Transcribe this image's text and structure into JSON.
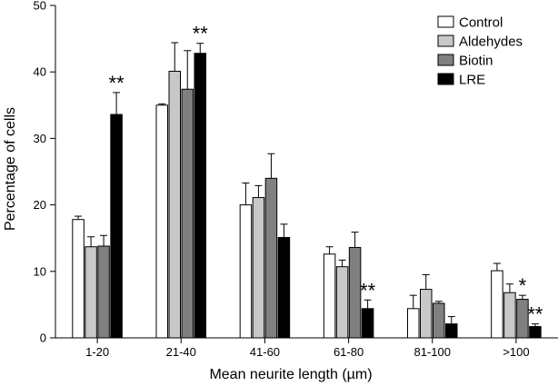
{
  "chart_data": {
    "type": "bar",
    "title": "",
    "xlabel": "Mean neurite length (µm)",
    "ylabel": "Percentage of cells",
    "ylim": [
      0,
      50
    ],
    "yticks": [
      0,
      10,
      20,
      30,
      40,
      50
    ],
    "grid": false,
    "legend_position": "top-right",
    "categories": [
      "1-20",
      "21-40",
      "41-60",
      "61-80",
      "81-100",
      ">100"
    ],
    "series": [
      {
        "name": "Control",
        "color": "#ffffff",
        "values": [
          17.8,
          35.0,
          20.0,
          12.6,
          4.4,
          10.1
        ],
        "errors": [
          0.5,
          0.2,
          3.3,
          1.1,
          2.0,
          1.1
        ],
        "significance": [
          "",
          "",
          "",
          "",
          "",
          ""
        ]
      },
      {
        "name": "Aldehydes",
        "color": "#c8c8c8",
        "values": [
          13.7,
          40.1,
          21.1,
          10.7,
          7.3,
          6.8
        ],
        "errors": [
          1.5,
          4.3,
          1.8,
          1.0,
          2.2,
          1.3
        ],
        "significance": [
          "",
          "",
          "",
          "",
          "",
          ""
        ]
      },
      {
        "name": "Biotin",
        "color": "#808080",
        "values": [
          13.8,
          37.4,
          24.0,
          13.6,
          5.2,
          5.8
        ],
        "errors": [
          1.6,
          5.8,
          3.7,
          2.3,
          0.3,
          0.6
        ],
        "significance": [
          "",
          "",
          "",
          "",
          "",
          "*"
        ]
      },
      {
        "name": "LRE",
        "color": "#000000",
        "values": [
          33.6,
          42.8,
          15.1,
          4.4,
          2.1,
          1.7
        ],
        "errors": [
          3.3,
          1.5,
          2.0,
          1.3,
          1.1,
          0.4
        ],
        "significance": [
          "**",
          "**",
          "",
          "**",
          "",
          "**"
        ]
      }
    ]
  }
}
